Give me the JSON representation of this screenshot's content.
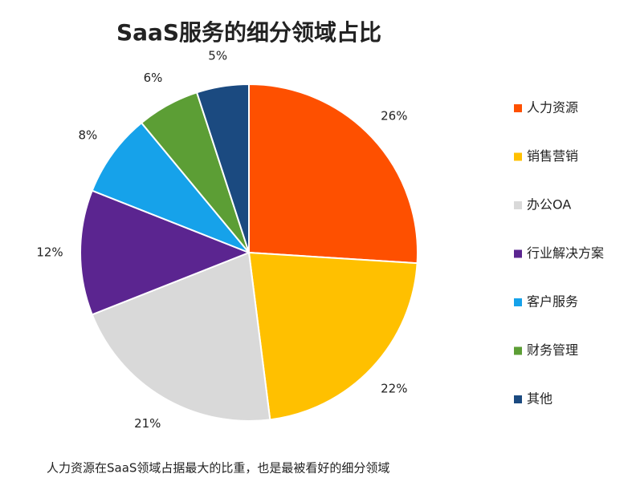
{
  "chart_data": {
    "type": "pie",
    "title": "SaaS服务的细分领域占比",
    "categories": [
      "人力资源",
      "销售营销",
      "办公OA",
      "行业解决方案",
      "客户服务",
      "财务管理",
      "其他"
    ],
    "values": [
      26,
      22,
      21,
      12,
      8,
      6,
      5
    ],
    "value_labels": [
      "26%",
      "22%",
      "21%",
      "12%",
      "8%",
      "6%",
      "5%"
    ],
    "colors": [
      "#fe5000",
      "#ffc000",
      "#d9d9d9",
      "#5b2590",
      "#16a2ea",
      "#5c9e35",
      "#1b4a80"
    ],
    "legend": "right",
    "caption": "人力资源在SaaS领域占据最大的比重，也是最被看好的细分领域"
  }
}
